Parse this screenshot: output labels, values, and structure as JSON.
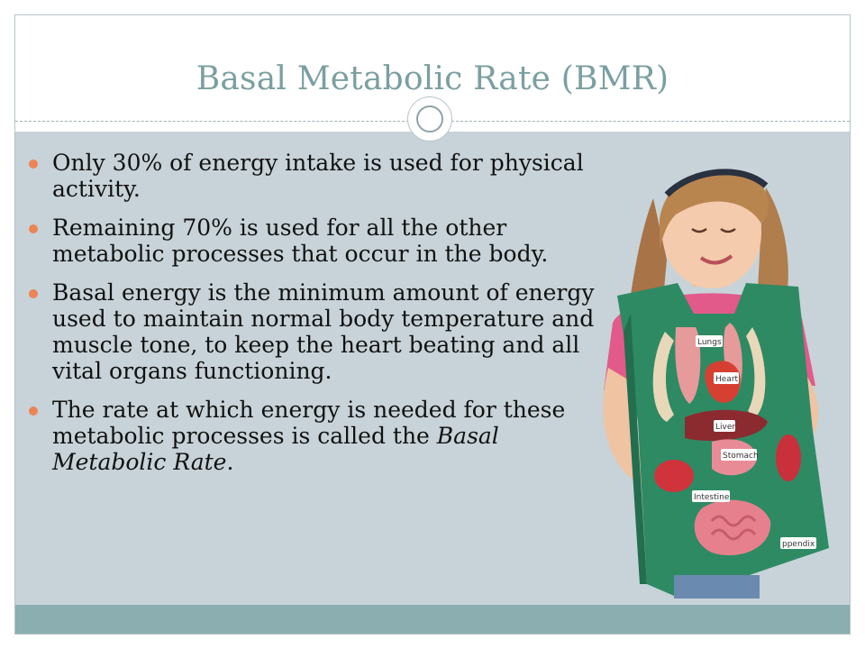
{
  "slide": {
    "title": "Basal Metabolic Rate (BMR)",
    "bullets": [
      "Only 30% of energy intake is used for physical activity.",
      "Remaining 70% is used for all the other metabolic processes that occur in the body.",
      "Basal energy is the minimum amount of energy used to maintain normal body temperature and muscle tone,  to keep the heart beating and all vital organs functioning."
    ],
    "last_bullet": {
      "text": "The rate at which energy is needed for these metabolic processes is called the ",
      "emphasis": "Basal Metabolic Rate",
      "end": "."
    }
  },
  "photo": {
    "organ_labels": [
      "Lungs",
      "Heart",
      "Liver",
      "Stomach",
      "Intestine",
      "ppendix"
    ]
  },
  "colors": {
    "title": "#7b9fa0",
    "content_background": "#c7d3d8",
    "footer_band": "#8baeb0",
    "bullet_marker": "#ec8456",
    "apron": "#2e8a63"
  }
}
